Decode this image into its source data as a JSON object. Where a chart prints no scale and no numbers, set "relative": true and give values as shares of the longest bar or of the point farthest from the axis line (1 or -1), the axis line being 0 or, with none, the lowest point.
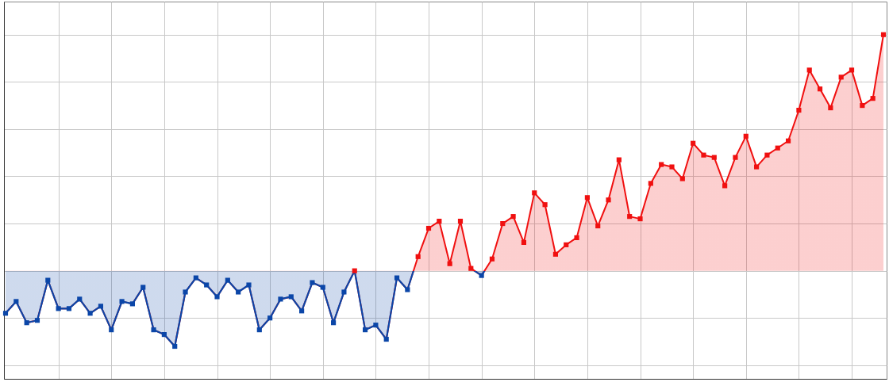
{
  "chart_data": {
    "type": "area",
    "relative": true,
    "grid": true,
    "marker": "square",
    "categories": [
      null,
      null,
      null,
      null,
      null,
      null,
      null,
      null,
      null,
      null,
      null,
      null,
      null,
      null,
      null,
      null,
      null,
      null,
      null,
      null,
      null,
      null,
      null,
      null,
      null,
      null,
      null,
      null,
      null,
      null,
      null,
      null,
      null,
      null,
      null,
      null,
      null,
      null,
      null,
      null,
      null,
      null,
      null,
      null,
      null,
      null,
      null,
      null,
      null,
      null,
      null,
      null,
      null,
      null,
      null,
      null,
      null,
      null,
      null,
      null,
      null,
      null,
      null,
      null,
      null,
      null,
      null,
      null,
      null,
      null,
      null,
      null,
      null,
      null,
      null,
      null,
      null,
      null,
      null,
      null,
      null,
      null,
      null,
      null
    ],
    "series": [
      {
        "color": "#f01010",
        "values": [
          -0.18,
          -0.13,
          -0.22,
          -0.21,
          -0.04,
          -0.16,
          -0.16,
          -0.12,
          -0.18,
          -0.15,
          -0.25,
          -0.13,
          -0.14,
          -0.07,
          -0.25,
          -0.27,
          -0.32,
          -0.09,
          -0.03,
          -0.06,
          -0.11,
          -0.04,
          -0.09,
          -0.06,
          -0.25,
          -0.2,
          -0.12,
          -0.11,
          -0.17,
          -0.05,
          -0.07,
          -0.22,
          -0.09,
          0,
          -0.25,
          -0.23,
          -0.29,
          -0.03,
          -0.08,
          0.06,
          0.18,
          0.21,
          0.03,
          0.21,
          0.01,
          -0.02,
          0.05,
          0.2,
          0.23,
          0.12,
          0.33,
          0.28,
          0.07,
          0.11,
          0.14,
          0.31,
          0.19,
          0.3,
          0.47,
          0.23,
          0.22,
          0.37,
          0.45,
          0.44,
          0.39,
          0.54,
          0.49,
          0.48,
          0.36,
          0.48,
          0.57,
          0.44,
          0.49,
          0.52,
          0.55,
          0.68,
          0.85,
          0.77,
          0.69,
          0.82,
          0.85,
          0.7,
          0.73,
          1
        ]
      }
    ],
    "colors": [
      "#0b46a8",
      "#0b46a8",
      "#0b46a8",
      "#0b46a8",
      "#0b46a8",
      "#0b46a8",
      "#0b46a8",
      "#0b46a8",
      "#0b46a8",
      "#0b46a8",
      "#0b46a8",
      "#0b46a8",
      "#0b46a8",
      "#0b46a8",
      "#0b46a8",
      "#0b46a8",
      "#0b46a8",
      "#0b46a8",
      "#0b46a8",
      "#0b46a8",
      "#0b46a8",
      "#0b46a8",
      "#0b46a8",
      "#0b46a8",
      "#0b46a8",
      "#0b46a8",
      "#0b46a8",
      "#0b46a8",
      "#0b46a8",
      "#0b46a8",
      "#0b46a8",
      "#0b46a8",
      "#0b46a8",
      "#f01010",
      "#0b46a8",
      "#0b46a8",
      "#0b46a8",
      "#0b46a8",
      "#0b46a8",
      "#f01010",
      "#f01010",
      "#f01010",
      "#f01010",
      "#f01010",
      "#f01010",
      "#0b46a8",
      "#f01010",
      "#f01010",
      "#f01010",
      "#f01010",
      "#f01010",
      "#f01010",
      "#f01010",
      "#f01010",
      "#f01010",
      "#f01010",
      "#f01010",
      "#f01010",
      "#f01010",
      "#f01010",
      "#f01010",
      "#f01010",
      "#f01010",
      "#f01010",
      "#f01010",
      "#f01010",
      "#f01010",
      "#f01010",
      "#f01010",
      "#f01010",
      "#f01010",
      "#f01010",
      "#f01010",
      "#f01010",
      "#f01010",
      "#f01010",
      "#f01010",
      "#f01010",
      "#f01010",
      "#f01010",
      "#f01010",
      "#f01010",
      "#f01010",
      "#f01010"
    ]
  }
}
